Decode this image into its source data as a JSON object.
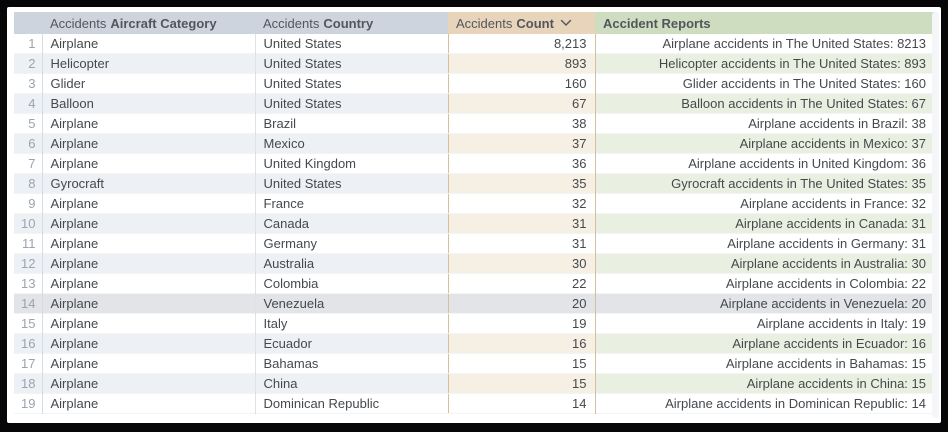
{
  "table": {
    "headers": [
      {
        "prefix": "Accidents",
        "label": "Aircraft Category"
      },
      {
        "prefix": "Accidents",
        "label": "Country"
      },
      {
        "prefix": "Accidents",
        "label": "Count"
      },
      {
        "prefix": "",
        "label": "Accident Reports"
      }
    ],
    "sort": {
      "column": "Count",
      "direction": "descending",
      "icon": "chevron-down-icon"
    },
    "highlighted_row_number": 14,
    "rows": [
      {
        "num": 1,
        "category": "Airplane",
        "country": "United States",
        "count": "8,213",
        "report": "Airplane accidents in The United States: 8213"
      },
      {
        "num": 2,
        "category": "Helicopter",
        "country": "United States",
        "count": "893",
        "report": "Helicopter accidents in The United States: 893"
      },
      {
        "num": 3,
        "category": "Glider",
        "country": "United States",
        "count": "160",
        "report": "Glider accidents in The United States: 160"
      },
      {
        "num": 4,
        "category": "Balloon",
        "country": "United States",
        "count": "67",
        "report": "Balloon accidents in The United States: 67"
      },
      {
        "num": 5,
        "category": "Airplane",
        "country": "Brazil",
        "count": "38",
        "report": "Airplane accidents in Brazil: 38"
      },
      {
        "num": 6,
        "category": "Airplane",
        "country": "Mexico",
        "count": "37",
        "report": "Airplane accidents in Mexico: 37"
      },
      {
        "num": 7,
        "category": "Airplane",
        "country": "United Kingdom",
        "count": "36",
        "report": "Airplane accidents in United Kingdom: 36"
      },
      {
        "num": 8,
        "category": "Gyrocraft",
        "country": "United States",
        "count": "35",
        "report": "Gyrocraft accidents in The United States: 35"
      },
      {
        "num": 9,
        "category": "Airplane",
        "country": "France",
        "count": "32",
        "report": "Airplane accidents in France: 32"
      },
      {
        "num": 10,
        "category": "Airplane",
        "country": "Canada",
        "count": "31",
        "report": "Airplane accidents in Canada: 31"
      },
      {
        "num": 11,
        "category": "Airplane",
        "country": "Germany",
        "count": "31",
        "report": "Airplane accidents in Germany: 31"
      },
      {
        "num": 12,
        "category": "Airplane",
        "country": "Australia",
        "count": "30",
        "report": "Airplane accidents in Australia: 30"
      },
      {
        "num": 13,
        "category": "Airplane",
        "country": "Colombia",
        "count": "22",
        "report": "Airplane accidents in Colombia: 22"
      },
      {
        "num": 14,
        "category": "Airplane",
        "country": "Venezuela",
        "count": "20",
        "report": "Airplane accidents in Venezuela: 20"
      },
      {
        "num": 15,
        "category": "Airplane",
        "country": "Italy",
        "count": "19",
        "report": "Airplane accidents in Italy: 19"
      },
      {
        "num": 16,
        "category": "Airplane",
        "country": "Ecuador",
        "count": "16",
        "report": "Airplane accidents in Ecuador: 16"
      },
      {
        "num": 17,
        "category": "Airplane",
        "country": "Bahamas",
        "count": "15",
        "report": "Airplane accidents in Bahamas: 15"
      },
      {
        "num": 18,
        "category": "Airplane",
        "country": "China",
        "count": "15",
        "report": "Airplane accidents in China: 15"
      },
      {
        "num": 19,
        "category": "Airplane",
        "country": "Dominican Republic",
        "count": "14",
        "report": "Airplane accidents in Dominican Republic: 14"
      }
    ]
  },
  "colors": {
    "header_category_country": "#cdd4dd",
    "header_count": "#e8d4ba",
    "header_reports": "#cedcc0",
    "alt_row_blue": "#edf1f5",
    "alt_row_tan": "#f6f0e4",
    "alt_row_green": "#eaf0e1",
    "highlight_row": "#e2e4e8",
    "count_column_border": "#d6c09c",
    "frame_background": "#060608"
  }
}
